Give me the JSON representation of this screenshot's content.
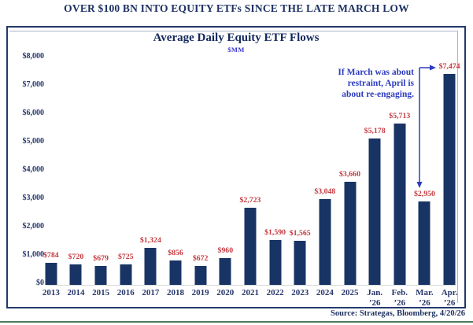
{
  "page_title": "OVER $100 BN INTO EQUITY ETFs SINCE THE LATE MARCH LOW",
  "source_note": "Source: Strategas, Bloomberg, 4/20/26",
  "colors": {
    "navy_text": "#1d3162",
    "bar": "#183465",
    "value_label_red": "#c4393f",
    "annotation_blue": "#2c3bbd",
    "subtitle_blue": "#3a35cf",
    "axis_line_gray": "#d9d9d9",
    "bottom_rule_green": "#4f7a5c"
  },
  "chart_data": {
    "type": "bar",
    "title": "Average Daily Equity ETF Flows",
    "subtitle": "$MM",
    "categories": [
      "2013",
      "2014",
      "2015",
      "2016",
      "2017",
      "2018",
      "2019",
      "2020",
      "2021",
      "2022",
      "2023",
      "2024",
      "2025",
      "Jan.\n’26",
      "Feb.\n’26",
      "Mar.\n’26",
      "Apr.\n’26"
    ],
    "values": [
      784,
      720,
      679,
      725,
      1324,
      856,
      672,
      960,
      2723,
      1590,
      1565,
      3048,
      3660,
      5178,
      5713,
      2950,
      7474
    ],
    "data_labels": [
      "$784",
      "$720",
      "$679",
      "$725",
      "$1,324",
      "$856",
      "$672",
      "$960",
      "$2,723",
      "$1,590",
      "$1,565",
      "$3,048",
      "$3,660",
      "$5,178",
      "$5,713",
      "$2,950",
      "$7,474"
    ],
    "ylim": [
      0,
      8000
    ],
    "yticks": [
      {
        "label": "$0",
        "value": 0
      },
      {
        "label": "$1,000",
        "value": 1000
      },
      {
        "label": "$2,000",
        "value": 2000
      },
      {
        "label": "$3,000",
        "value": 3000
      },
      {
        "label": "$4,000",
        "value": 4000
      },
      {
        "label": "$5,000",
        "value": 5000
      },
      {
        "label": "$6,000",
        "value": 6000
      },
      {
        "label": "$7,000",
        "value": 7000
      },
      {
        "label": "$8,000",
        "value": 8000
      }
    ],
    "grid": false,
    "legend": false,
    "annotation": "If March was about\nrestraint, April is\nabout re-engaging."
  }
}
